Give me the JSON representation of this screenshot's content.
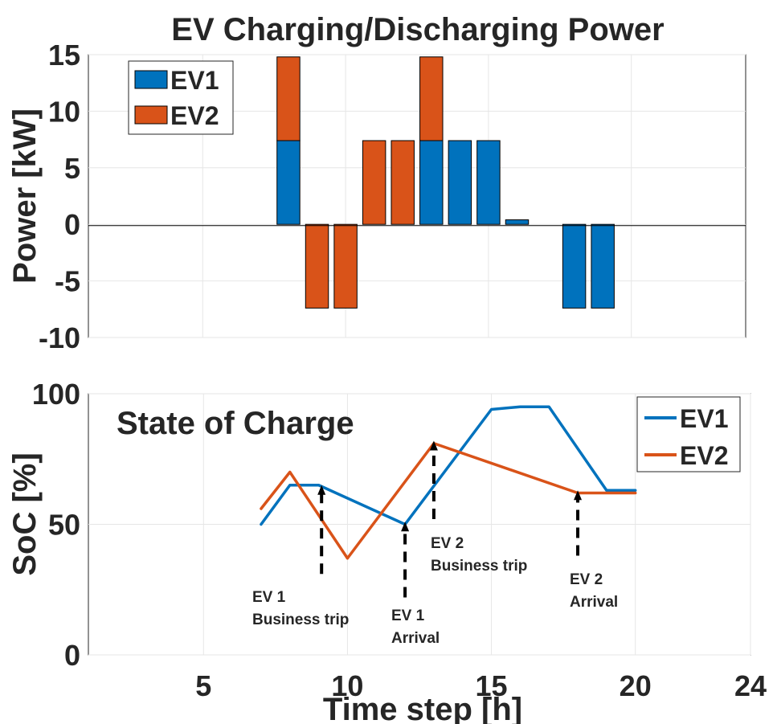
{
  "chart_data": [
    {
      "type": "bar",
      "stacked": true,
      "title": "EV Charging/Discharging Power",
      "xlabel": "",
      "ylabel": "Power [kW]",
      "xlim": [
        1,
        24
      ],
      "ylim": [
        -10,
        15
      ],
      "yticks": [
        15,
        10,
        5,
        0,
        -5,
        -10
      ],
      "grid": true,
      "legend_position": "top-left",
      "categories": [
        8,
        9,
        10,
        11,
        12,
        13,
        14,
        15,
        16,
        18,
        19
      ],
      "series": [
        {
          "name": "EV1",
          "color": "#0072BD",
          "values": [
            7.4,
            0,
            0,
            0,
            0,
            7.4,
            7.4,
            7.4,
            0.4,
            -7.4,
            -7.4
          ]
        },
        {
          "name": "EV2",
          "color": "#D95319",
          "values": [
            7.4,
            -7.4,
            -7.4,
            7.4,
            7.4,
            7.4,
            0,
            0,
            0,
            0,
            0
          ]
        }
      ]
    },
    {
      "type": "line",
      "title": "State of Charge",
      "xlabel": "Time step [h]",
      "ylabel": "SoC [%]",
      "xlim": [
        1,
        24
      ],
      "ylim": [
        0,
        100
      ],
      "xticks": [
        5,
        10,
        15,
        20,
        24
      ],
      "yticks": [
        100,
        50,
        0
      ],
      "grid": true,
      "legend_position": "top-right",
      "series": [
        {
          "name": "EV1",
          "color": "#0072BD",
          "x": [
            7,
            8,
            9,
            12,
            15,
            16,
            17,
            19,
            20
          ],
          "y": [
            50,
            65,
            65,
            50,
            94,
            95,
            95,
            63,
            63
          ]
        },
        {
          "name": "EV1",
          "color": "#0072BD",
          "x": [],
          "y": []
        },
        {
          "name": "EV2",
          "color": "#D95319",
          "x": [
            7,
            8,
            10,
            13,
            18,
            20
          ],
          "y": [
            56,
            70,
            37,
            81,
            62,
            62
          ]
        }
      ],
      "annotations": [
        {
          "lines": [
            "EV 1",
            "Business trip"
          ],
          "x": 9.1,
          "arrow_from": 31,
          "arrow_to": 65
        },
        {
          "lines": [
            "EV 1",
            "Arrival"
          ],
          "x": 12.0,
          "arrow_from": 22,
          "arrow_to": 51
        },
        {
          "lines": [
            "EV 2",
            "Business trip"
          ],
          "x": 13.0,
          "arrow_from": 52,
          "arrow_to": 82
        },
        {
          "lines": [
            "EV 2",
            "Arrival"
          ],
          "x": 18.0,
          "arrow_from": 38,
          "arrow_to": 63
        }
      ]
    }
  ]
}
